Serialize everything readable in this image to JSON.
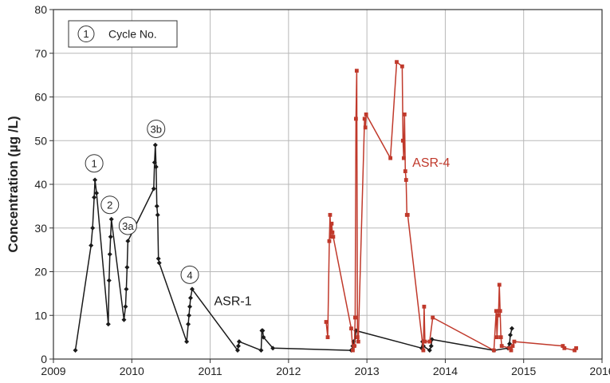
{
  "chart_data": {
    "type": "line",
    "title": "",
    "xlabel": "",
    "ylabel": "Concentration (µg /L)",
    "xlim": [
      2009,
      2016
    ],
    "ylim": [
      0,
      80
    ],
    "x_ticks": [
      "2009",
      "2010",
      "2011",
      "2012",
      "2013",
      "2014",
      "2015",
      "2016"
    ],
    "y_ticks": [
      "0",
      "10",
      "20",
      "30",
      "40",
      "50",
      "60",
      "70",
      "80"
    ],
    "grid": true,
    "legend": {
      "symbol": "1",
      "text": "Cycle No.",
      "position": "top-left"
    },
    "series": [
      {
        "name": "ASR-1",
        "color": "#1a1a1a",
        "marker": "diamond",
        "x": [
          2009.28,
          2009.48,
          2009.5,
          2009.52,
          2009.53,
          2009.55,
          2009.7,
          2009.71,
          2009.72,
          2009.73,
          2009.74,
          2009.9,
          2009.92,
          2009.93,
          2009.94,
          2009.95,
          2010.28,
          2010.29,
          2010.3,
          2010.31,
          2010.32,
          2010.33,
          2010.34,
          2010.35,
          2010.7,
          2010.72,
          2010.73,
          2010.74,
          2010.75,
          2010.77,
          2011.35,
          2011.36,
          2011.37,
          2011.65,
          2011.66,
          2011.67,
          2011.68,
          2011.8,
          2012.8,
          2012.82,
          2012.83,
          2012.84,
          2012.86,
          2013.7,
          2013.71,
          2013.72,
          2013.8,
          2013.82,
          2013.83,
          2014.62,
          2014.8,
          2014.82,
          2014.83,
          2014.85
        ],
        "y": [
          2,
          26,
          30,
          37,
          41,
          38,
          8,
          18,
          24,
          28,
          32,
          9,
          12,
          16,
          21,
          27,
          39,
          45,
          49,
          44,
          35,
          33,
          23,
          22,
          4,
          8,
          10,
          12,
          14,
          16,
          2,
          3,
          4,
          2,
          6.5,
          6.5,
          5,
          2.5,
          2,
          3,
          4,
          3,
          6.5,
          2.5,
          4,
          3,
          2,
          3,
          4.5,
          2,
          2.5,
          3.5,
          5.5,
          7
        ]
      },
      {
        "name": "ASR-4",
        "color": "#c0392b",
        "marker": "square",
        "x": [
          2012.48,
          2012.5,
          2012.52,
          2012.53,
          2012.54,
          2012.55,
          2012.56,
          2012.57,
          2012.8,
          2012.82,
          2012.84,
          2012.85,
          2012.86,
          2012.87,
          2012.88,
          2012.89,
          2012.97,
          2012.98,
          2012.99,
          2013.3,
          2013.38,
          2013.45,
          2013.46,
          2013.47,
          2013.48,
          2013.49,
          2013.5,
          2013.51,
          2013.52,
          2013.72,
          2013.73,
          2013.74,
          2013.8,
          2013.84,
          2014.62,
          2014.65,
          2014.66,
          2014.67,
          2014.68,
          2014.69,
          2014.7,
          2014.71,
          2014.72,
          2014.82,
          2014.84,
          2014.86,
          2014.88,
          2015.5,
          2015.52,
          2015.65,
          2015.67
        ],
        "y": [
          8.5,
          5,
          27,
          33,
          28,
          31,
          29,
          28,
          7,
          2,
          3,
          9.5,
          55,
          66,
          5,
          4,
          55,
          53,
          56,
          46,
          68,
          67,
          50,
          46,
          56,
          43,
          41,
          33,
          33,
          2,
          12,
          4,
          4,
          9.5,
          2,
          11,
          5,
          10,
          11,
          17,
          11,
          5,
          3,
          2.5,
          2,
          3,
          4,
          3,
          2.5,
          2,
          2.5
        ]
      }
    ],
    "annotations": [
      {
        "label": "1",
        "x": 2009.52,
        "y": 44.8
      },
      {
        "label": "2",
        "x": 2009.72,
        "y": 35.3
      },
      {
        "label": "3a",
        "x": 2009.95,
        "y": 30.5
      },
      {
        "label": "3b",
        "x": 2010.31,
        "y": 52.7
      },
      {
        "label": "4",
        "x": 2010.74,
        "y": 19.3
      }
    ],
    "series_labels": [
      {
        "text": "ASR-1",
        "x": 2011.05,
        "y": 12.3,
        "color": "#1a1a1a"
      },
      {
        "text": "ASR-4",
        "x": 2013.58,
        "y": 44,
        "color": "#c0392b"
      }
    ]
  }
}
